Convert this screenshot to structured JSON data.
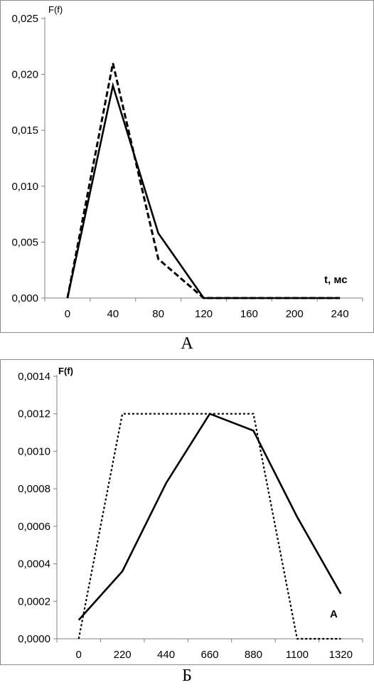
{
  "chart_data": [
    {
      "type": "line",
      "ylabel": "F(f)",
      "xlabel": "t, мс",
      "x": [
        0,
        40,
        80,
        120,
        160,
        200,
        240
      ],
      "x_tick_labels": [
        "0",
        "40",
        "80",
        "120",
        "160",
        "200",
        "240"
      ],
      "y_tick_labels": [
        "0,000",
        "0,005",
        "0,010",
        "0,015",
        "0,020",
        "0,025"
      ],
      "ylim": [
        0,
        0.025
      ],
      "xlim": [
        -20,
        260
      ],
      "grid": false,
      "series": [
        {
          "style": "solid",
          "color": "#000000",
          "points": [
            [
              0,
              0.0
            ],
            [
              40,
              0.019
            ],
            [
              80,
              0.0058
            ],
            [
              120,
              0.0
            ],
            [
              240,
              0.0
            ]
          ]
        },
        {
          "style": "dashed",
          "color": "#000000",
          "points": [
            [
              0,
              0.0
            ],
            [
              40,
              0.021
            ],
            [
              80,
              0.0035
            ],
            [
              120,
              0.0
            ],
            [
              240,
              0.0
            ]
          ]
        }
      ],
      "caption": "А"
    },
    {
      "type": "line",
      "ylabel": "F(f)",
      "x": [
        0,
        220,
        440,
        660,
        880,
        1100,
        1320
      ],
      "x_tick_labels": [
        "0",
        "220",
        "440",
        "660",
        "880",
        "1100",
        "1320"
      ],
      "y_tick_labels": [
        "0,0000",
        "0,0002",
        "0,0004",
        "0,0006",
        "0,0008",
        "0,0010",
        "0,0012",
        "0,0014"
      ],
      "ylim": [
        0,
        0.0014
      ],
      "xlim": [
        -110,
        1430
      ],
      "grid": false,
      "series": [
        {
          "style": "solid",
          "color": "#000000",
          "points": [
            [
              0,
              0.0001
            ],
            [
              220,
              0.00036
            ],
            [
              440,
              0.00083
            ],
            [
              660,
              0.0012
            ],
            [
              880,
              0.00111
            ],
            [
              1100,
              0.00065
            ],
            [
              1320,
              0.00024
            ]
          ]
        },
        {
          "style": "dotted",
          "color": "#000000",
          "points": [
            [
              0,
              0.0
            ],
            [
              220,
              0.0012
            ],
            [
              440,
              0.0012
            ],
            [
              660,
              0.0012
            ],
            [
              880,
              0.0012
            ],
            [
              1100,
              0.0
            ],
            [
              1320,
              0.0
            ]
          ]
        }
      ],
      "annotation": "A",
      "caption": "Б"
    }
  ]
}
